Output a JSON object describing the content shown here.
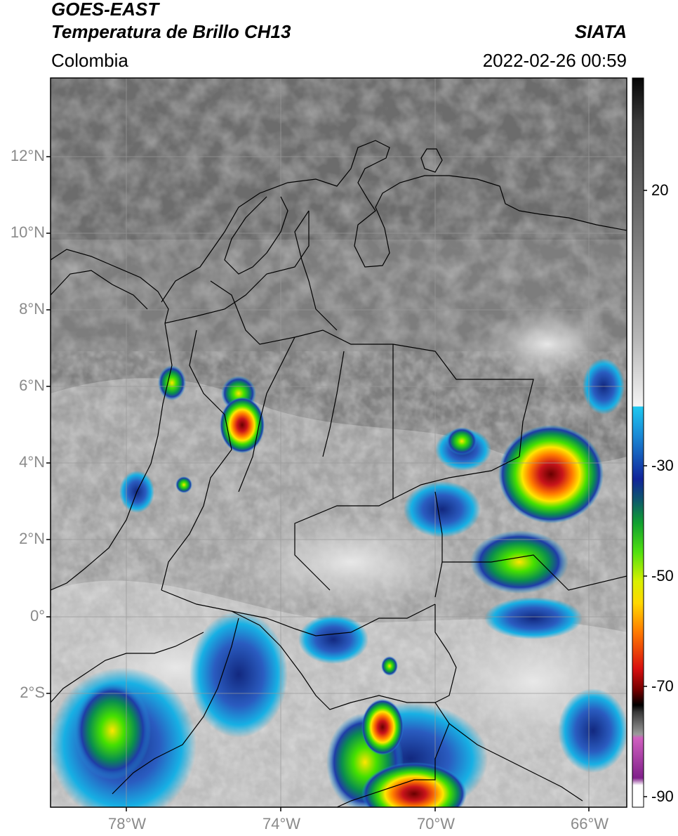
{
  "header": {
    "satellite": "GOES-EAST",
    "product": "Temperatura de Brillo CH13",
    "organization": "SIATA",
    "region": "Colombia",
    "timestamp": "2022-02-26 00:59"
  },
  "map": {
    "lon_range": [
      -80.0,
      -64.0
    ],
    "lat_range": [
      -4.9,
      14.1
    ],
    "lat_ticks": [
      {
        "label": "12°N"
      },
      {
        "label": "10°N"
      },
      {
        "label": "8°N"
      },
      {
        "label": "6°N"
      },
      {
        "label": "4°N"
      },
      {
        "label": "2°N"
      },
      {
        "label": "0°"
      },
      {
        "label": "2°S"
      }
    ],
    "lon_ticks": [
      {
        "label": "78°W"
      },
      {
        "label": "74°W"
      },
      {
        "label": "70°W"
      },
      {
        "label": "66°W"
      }
    ],
    "grid": true
  },
  "colorbar": {
    "ticks": [
      {
        "label": "20"
      },
      {
        "label": "-30"
      },
      {
        "label": "-50"
      },
      {
        "label": "-70"
      },
      {
        "label": "-90"
      }
    ],
    "scale": "grayscale above -20; blue/green/yellow/red/black below"
  }
}
